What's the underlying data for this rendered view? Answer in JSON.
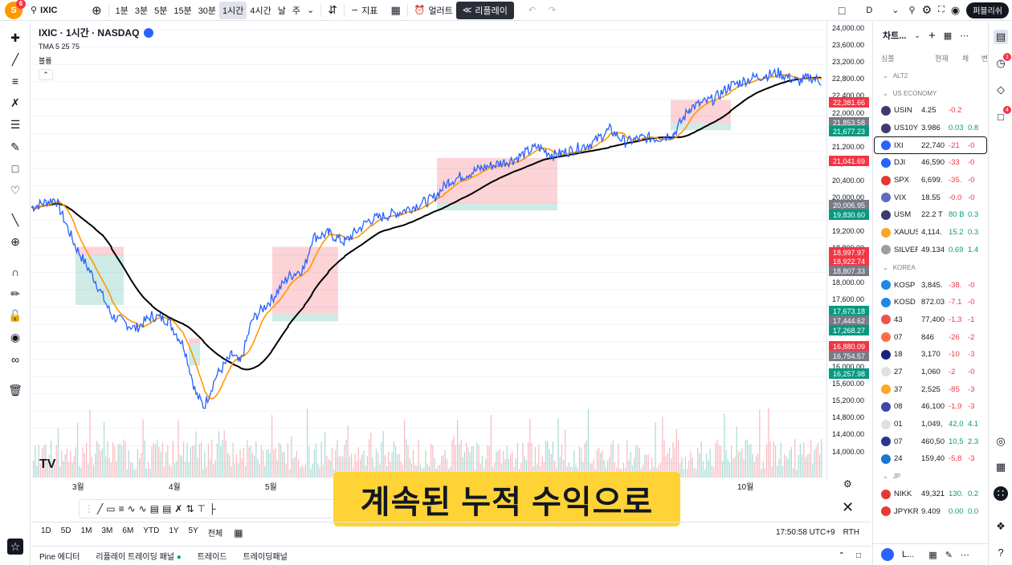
{
  "topbar": {
    "avatar_letter": "S",
    "avatar_badge": "6",
    "symbol": "IXIC",
    "intervals": [
      "1분",
      "3분",
      "5분",
      "15분",
      "30분",
      "1시간",
      "4시간",
      "날",
      "주"
    ],
    "active_interval": "1시간",
    "indicators_label": "지표",
    "alert_label": "얼러트",
    "replay_label": "리플레이",
    "layout_label": "D",
    "publish_label": "퍼블리쉬"
  },
  "legend": {
    "title": "IXIC · 1시간 · NASDAQ",
    "ma_label": "TMA 5 25 75",
    "volume_label": "볼륨"
  },
  "price_scale": {
    "ticks": [
      "24,000.00",
      "23,600.00",
      "23,200.00",
      "22,800.00",
      "22,400.00",
      "22,000.00",
      "21,600.00",
      "21,200.00",
      "20,800.00",
      "20,400.00",
      "20,000.00",
      "19,600.00",
      "19,200.00",
      "18,800.00",
      "18,400.00",
      "18,000.00",
      "17,600.00",
      "17,200.00",
      "16,800.00",
      "16,400.00",
      "16,000.00",
      "15,600.00",
      "15,200.00",
      "14,800.00",
      "14,400.00",
      "14,000.00"
    ],
    "tags": [
      {
        "label": "22,381.66",
        "color": "#f23645"
      },
      {
        "label": "21,853.58",
        "color": "#787b86"
      },
      {
        "label": "21,677.23",
        "color": "#089981"
      },
      {
        "label": "21,041.69",
        "color": "#f23645"
      },
      {
        "label": "20,006.95",
        "color": "#787b86"
      },
      {
        "label": "19,830.60",
        "color": "#089981"
      },
      {
        "label": "18,997.97",
        "color": "#f23645"
      },
      {
        "label": "18,922.74",
        "color": "#f23645"
      },
      {
        "label": "18,807.33",
        "color": "#787b86"
      },
      {
        "label": "17,673.18",
        "color": "#089981"
      },
      {
        "label": "17,444.62",
        "color": "#787b86"
      },
      {
        "label": "17,268.27",
        "color": "#089981"
      },
      {
        "label": "16,880.09",
        "color": "#f23645"
      },
      {
        "label": "16,754.57",
        "color": "#787b86"
      },
      {
        "label": "16,257.98",
        "color": "#089981"
      }
    ]
  },
  "time_axis": [
    "3월",
    "4월",
    "5월",
    "10월"
  ],
  "range_bar": {
    "ranges": [
      "1D",
      "5D",
      "1M",
      "3M",
      "6M",
      "YTD",
      "1Y",
      "5Y",
      "전체"
    ],
    "clock": "17:50:58 UTC+9",
    "session": "RTH"
  },
  "bottom_panel": {
    "tabs": [
      "Pine 에디터",
      "리플레이 트레이딩 패널",
      "트레이드",
      "트레이딩패널"
    ]
  },
  "watchlist": {
    "title": "차트...",
    "columns": [
      "심볼",
      "현재",
      "체",
      "변"
    ],
    "groups": [
      {
        "name": "ALT2",
        "rows": []
      },
      {
        "name": "US ECONOMY",
        "rows": [
          {
            "sym": "USIN",
            "last": "4.25",
            "chg": "-0.2",
            "chgp": "",
            "flag": "#3c3b6e"
          },
          {
            "sym": "US10Y",
            "last": "3.986",
            "chg": "0.03",
            "chgp": "0.8",
            "flag": "#3c3b6e"
          },
          {
            "sym": "IXI",
            "last": "22,740",
            "chg": "-21",
            "chgp": "-0",
            "flag": "#2962ff",
            "selected": true
          },
          {
            "sym": "DJI",
            "last": "46,590",
            "chg": "-33",
            "chgp": "-0",
            "flag": "#2962ff"
          },
          {
            "sym": "SPX",
            "last": "6,699.",
            "chg": "-35.",
            "chgp": "-0",
            "flag": "#e53935"
          },
          {
            "sym": "VIX",
            "last": "18.55",
            "chg": "-0.0",
            "chgp": "-0",
            "flag": "#5c6bc0"
          },
          {
            "sym": "USM",
            "last": "22.2 T",
            "chg": "80 B",
            "chgp": "0.3",
            "flag": "#3c3b6e"
          },
          {
            "sym": "XAUUS",
            "last": "4,114.",
            "chg": "15.2",
            "chgp": "0.3",
            "flag": "#f9a825"
          },
          {
            "sym": "SILVER",
            "last": "49.134",
            "chg": "0.69",
            "chgp": "1.4",
            "flag": "#9e9e9e"
          }
        ]
      },
      {
        "name": "KOREA",
        "rows": [
          {
            "sym": "KOSP",
            "last": "3,845.",
            "chg": "-38.",
            "chgp": "-0",
            "flag": "#1e88e5"
          },
          {
            "sym": "KOSD",
            "last": "872.03",
            "chg": "-7.1",
            "chgp": "-0",
            "flag": "#1e88e5"
          },
          {
            "sym": "43",
            "last": "77,400",
            "chg": "-1,3",
            "chgp": "-1",
            "flag": "#ef5350"
          },
          {
            "sym": "07",
            "last": "846",
            "chg": "-26",
            "chgp": "-2",
            "flag": "#ff7043"
          },
          {
            "sym": "18",
            "last": "3,170",
            "chg": "-10",
            "chgp": "-3",
            "flag": "#1a237e"
          },
          {
            "sym": "27",
            "last": "1,060",
            "chg": "-2",
            "chgp": "-0",
            "flag": "#e0e0e0"
          },
          {
            "sym": "37",
            "last": "2,525",
            "chg": "-85",
            "chgp": "-3",
            "flag": "#ffa726"
          },
          {
            "sym": "08",
            "last": "46,100",
            "chg": "-1,9",
            "chgp": "-3",
            "flag": "#3949ab"
          },
          {
            "sym": "01",
            "last": "1,049,",
            "chg": "42,0",
            "chgp": "4.1",
            "flag": "#e0e0e0"
          },
          {
            "sym": "07",
            "last": "460,50",
            "chg": "10,5",
            "chgp": "2.3",
            "flag": "#283593"
          },
          {
            "sym": "24",
            "last": "159,40",
            "chg": "-5,8",
            "chgp": "-3",
            "flag": "#1976d2"
          }
        ]
      },
      {
        "name": "JP",
        "rows": [
          {
            "sym": "NIKK",
            "last": "49,321",
            "chg": "130.",
            "chgp": "0.2",
            "flag": "#e53935"
          },
          {
            "sym": "JPYKR",
            "last": "9.409",
            "chg": "0.00",
            "chgp": "0.0",
            "flag": "#e53935"
          }
        ]
      }
    ],
    "footer_label": "L..."
  },
  "caption": "계속된 누적 수익으로",
  "chart_data": {
    "type": "line",
    "title": "IXIC · 1시간 · NASDAQ",
    "y_range": [
      14000,
      24000
    ],
    "series": [
      {
        "name": "price",
        "color": "#2962ff"
      },
      {
        "name": "TMA 5",
        "color": "#ff9800"
      },
      {
        "name": "TMA 25",
        "color": "#ff9800"
      },
      {
        "name": "TMA 75",
        "color": "#000000"
      }
    ]
  }
}
